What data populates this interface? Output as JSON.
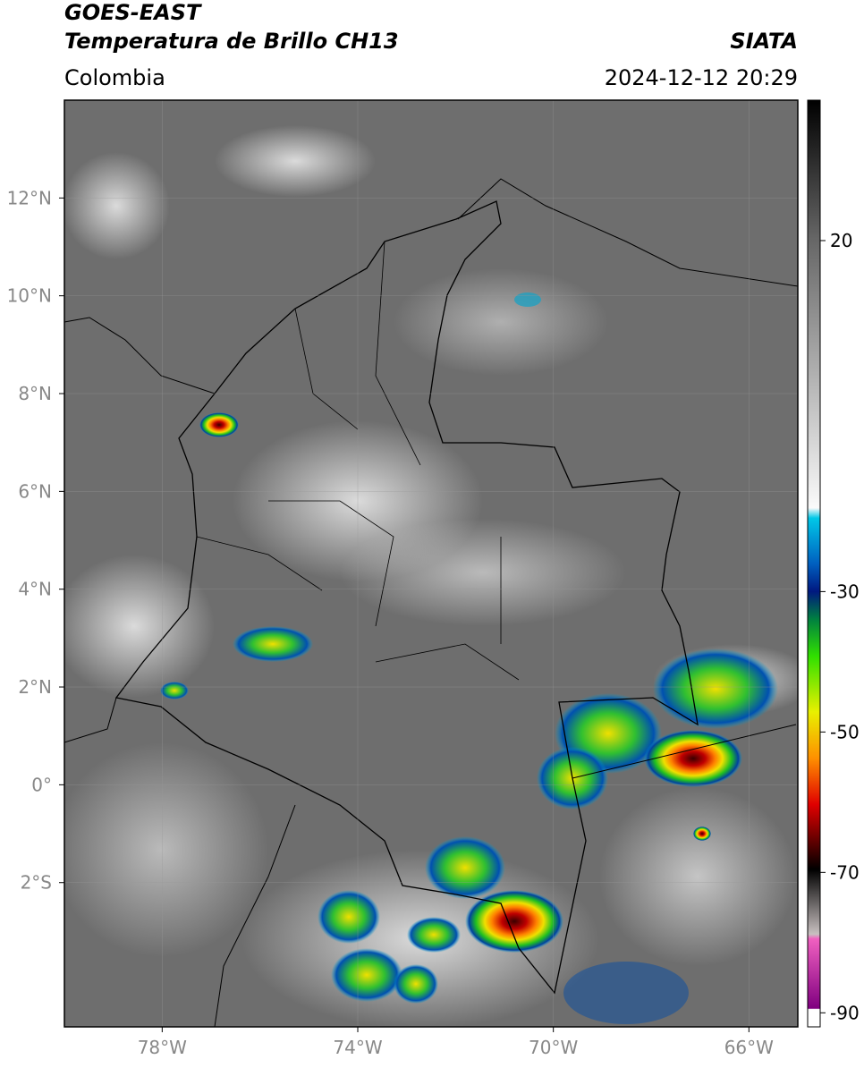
{
  "header": {
    "title_line1": "GOES-EAST",
    "title_line2": "Temperatura de Brillo CH13",
    "region": "Colombia",
    "source": "SIATA",
    "timestamp": "2024-12-12 20:29"
  },
  "map": {
    "lon_range": [
      -80,
      -65
    ],
    "lat_range": [
      -4.95,
      14
    ],
    "lon_ticks": [
      {
        "value": -78,
        "label": "78°W"
      },
      {
        "value": -74,
        "label": "74°W"
      },
      {
        "value": -70,
        "label": "70°W"
      },
      {
        "value": -66,
        "label": "66°W"
      }
    ],
    "lat_ticks": [
      {
        "value": 12,
        "label": "12°N"
      },
      {
        "value": 10,
        "label": "10°N"
      },
      {
        "value": 8,
        "label": "8°N"
      },
      {
        "value": 6,
        "label": "6°N"
      },
      {
        "value": 4,
        "label": "4°N"
      },
      {
        "value": 2,
        "label": "2°N"
      },
      {
        "value": 0,
        "label": "0°"
      },
      {
        "value": -2,
        "label": "2°S"
      }
    ]
  },
  "colorbar": {
    "range": [
      -92,
      40
    ],
    "ticks": [
      20,
      -30,
      -50,
      -70,
      -90
    ]
  }
}
